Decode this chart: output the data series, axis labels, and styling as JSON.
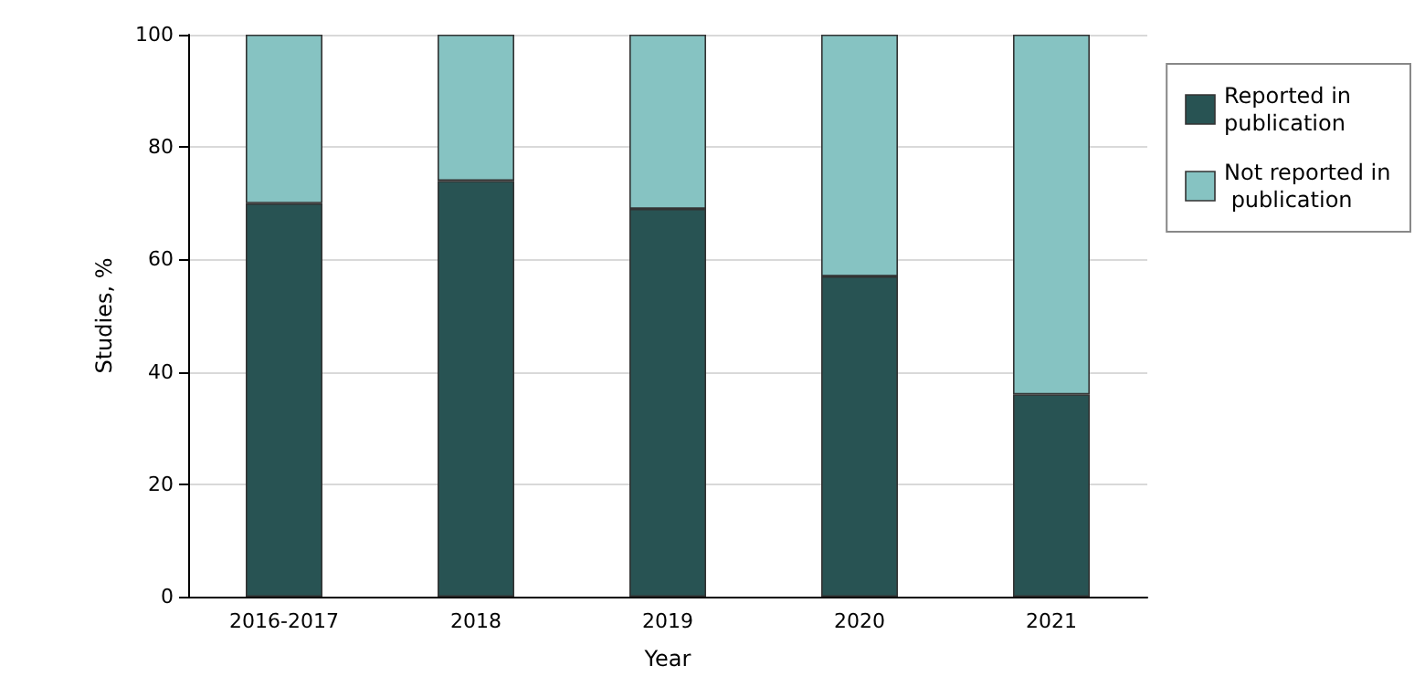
{
  "chart_data": {
    "type": "bar",
    "stacked": true,
    "xlabel": "Year",
    "ylabel": "Studies, %",
    "categories": [
      "2016-2017",
      "2018",
      "2019",
      "2020",
      "2021"
    ],
    "series": [
      {
        "name": "Reported in publication",
        "color": "#285353",
        "values": [
          70,
          74,
          69,
          57,
          36
        ]
      },
      {
        "name": "Not reported in publication",
        "color": "#86c3c2",
        "values": [
          30,
          26,
          31,
          43,
          64
        ]
      }
    ],
    "ylim": [
      0,
      100
    ],
    "yticks": [
      0,
      20,
      40,
      60,
      80,
      100
    ],
    "grid": "y",
    "legend": "top right"
  }
}
